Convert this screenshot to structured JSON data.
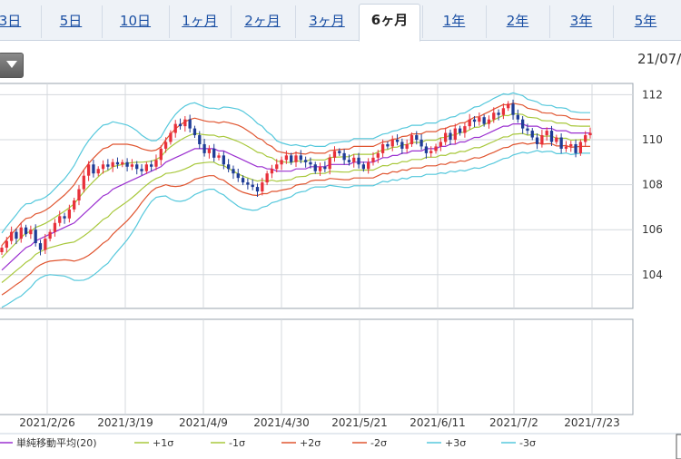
{
  "tabs": [
    {
      "label": "3日",
      "active": false
    },
    {
      "label": "5日",
      "active": false
    },
    {
      "label": "10日",
      "active": false
    },
    {
      "label": "1ヶ月",
      "active": false
    },
    {
      "label": "2ヶ月",
      "active": false
    },
    {
      "label": "3ヶ月",
      "active": false
    },
    {
      "label": "6ヶ月",
      "active": true
    },
    {
      "label": "1年",
      "active": false
    },
    {
      "label": "2年",
      "active": false
    },
    {
      "label": "3年",
      "active": false
    },
    {
      "label": "5年",
      "active": false
    }
  ],
  "date_label": "21/07/",
  "colors": {
    "sma": "#9b30d0",
    "sigma1": "#a8c83c",
    "sigma2": "#e05530",
    "sigma3": "#55c8dc",
    "up": "#e8303a",
    "down": "#1e3c96"
  },
  "chart_data": {
    "type": "candlestick",
    "title": "",
    "ylim": [
      102.5,
      112.5
    ],
    "y_ticks": [
      104,
      106,
      108,
      110,
      112
    ],
    "x_ticks": [
      "2021/2/26",
      "2021/3/19",
      "2021/4/9",
      "2021/4/30",
      "2021/5/21",
      "2021/6/11",
      "2021/7/2",
      "2021/7/23"
    ],
    "legend": [
      {
        "label": "単純移動平均(20)",
        "color_key": "sma"
      },
      {
        "label": "+1σ",
        "color_key": "sigma1"
      },
      {
        "label": "-1σ",
        "color_key": "sigma1"
      },
      {
        "label": "+2σ",
        "color_key": "sigma2"
      },
      {
        "label": "-2σ",
        "color_key": "sigma2"
      },
      {
        "label": "+3σ",
        "color_key": "sigma3"
      },
      {
        "label": "-3σ",
        "color_key": "sigma3"
      }
    ],
    "closes": [
      105.2,
      105.5,
      105.9,
      105.6,
      106.1,
      105.8,
      106.0,
      105.4,
      105.1,
      105.6,
      105.9,
      106.3,
      106.6,
      106.5,
      106.9,
      107.3,
      107.8,
      108.4,
      108.9,
      108.5,
      108.7,
      108.9,
      108.8,
      109.0,
      108.9,
      109.0,
      108.8,
      108.9,
      108.7,
      108.6,
      108.9,
      108.8,
      109.1,
      109.6,
      109.9,
      110.3,
      110.7,
      110.6,
      110.9,
      110.5,
      110.2,
      109.8,
      109.4,
      109.6,
      109.2,
      109.3,
      108.9,
      108.7,
      108.5,
      108.3,
      108.1,
      108.0,
      107.9,
      107.7,
      108.1,
      108.5,
      108.7,
      108.9,
      109.1,
      109.3,
      109.0,
      109.3,
      109.1,
      109.0,
      108.9,
      108.6,
      108.8,
      108.7,
      109.2,
      109.5,
      109.4,
      109.1,
      109.0,
      109.2,
      108.9,
      108.7,
      109.0,
      109.2,
      109.4,
      109.8,
      109.7,
      110.0,
      109.9,
      109.6,
      109.8,
      110.2,
      110.0,
      109.7,
      109.4,
      109.5,
      109.7,
      109.9,
      110.3,
      110.0,
      110.5,
      110.3,
      110.6,
      110.9,
      110.8,
      111.0,
      110.7,
      110.9,
      111.2,
      111.1,
      111.4,
      111.6,
      111.1,
      110.9,
      110.5,
      110.4,
      110.1,
      109.8,
      110.2,
      110.4,
      109.9,
      110.1,
      109.6,
      109.7,
      109.8,
      109.4,
      109.9,
      110.2,
      110.3
    ],
    "sma": [
      104.2,
      104.4,
      104.6,
      104.8,
      105.0,
      105.2,
      105.3,
      105.5,
      105.6,
      105.7,
      105.8,
      105.9,
      106.0,
      106.1,
      106.2,
      106.3,
      106.5,
      106.7,
      106.9,
      107.1,
      107.3,
      107.5,
      107.6,
      107.8,
      107.9,
      108.0,
      108.1,
      108.2,
      108.3,
      108.4,
      108.5,
      108.6,
      108.7,
      108.8,
      109.0,
      109.1,
      109.2,
      109.3,
      109.4,
      109.5,
      109.6,
      109.6,
      109.6,
      109.6,
      109.6,
      109.5,
      109.5,
      109.4,
      109.3,
      109.2,
      109.1,
      109.0,
      108.9,
      108.8,
      108.8,
      108.7,
      108.7,
      108.6,
      108.6,
      108.6,
      108.6,
      108.7,
      108.7,
      108.7,
      108.8,
      108.8,
      108.8,
      108.8,
      108.9,
      108.9,
      108.9,
      108.9,
      108.9,
      109.0,
      109.0,
      109.0,
      109.0,
      109.0,
      109.1,
      109.2,
      109.2,
      109.3,
      109.3,
      109.4,
      109.4,
      109.5,
      109.5,
      109.5,
      109.6,
      109.6,
      109.6,
      109.7,
      109.7,
      109.8,
      109.8,
      109.9,
      109.9,
      110.0,
      110.1,
      110.1,
      110.2,
      110.3,
      110.4,
      110.5,
      110.6,
      110.6,
      110.7,
      110.7,
      110.7,
      110.6,
      110.6,
      110.6,
      110.5,
      110.5,
      110.5,
      110.4,
      110.4,
      110.4,
      110.3,
      110.3,
      110.3,
      110.3,
      110.3
    ],
    "sigma": [
      0.55,
      0.58,
      0.6,
      0.62,
      0.65,
      0.65,
      0.62,
      0.6,
      0.58,
      0.58,
      0.6,
      0.64,
      0.68,
      0.72,
      0.78,
      0.85,
      0.92,
      0.98,
      1.02,
      1.04,
      1.05,
      1.05,
      1.03,
      1.0,
      0.95,
      0.9,
      0.85,
      0.78,
      0.7,
      0.6,
      0.52,
      0.45,
      0.42,
      0.44,
      0.5,
      0.58,
      0.64,
      0.68,
      0.7,
      0.7,
      0.68,
      0.65,
      0.62,
      0.6,
      0.6,
      0.62,
      0.65,
      0.68,
      0.7,
      0.72,
      0.72,
      0.7,
      0.68,
      0.64,
      0.6,
      0.55,
      0.5,
      0.45,
      0.42,
      0.4,
      0.38,
      0.36,
      0.34,
      0.33,
      0.32,
      0.3,
      0.3,
      0.3,
      0.31,
      0.32,
      0.33,
      0.34,
      0.34,
      0.35,
      0.35,
      0.35,
      0.35,
      0.35,
      0.35,
      0.35,
      0.36,
      0.36,
      0.37,
      0.37,
      0.38,
      0.38,
      0.38,
      0.38,
      0.38,
      0.38,
      0.38,
      0.39,
      0.4,
      0.4,
      0.41,
      0.42,
      0.43,
      0.44,
      0.45,
      0.46,
      0.47,
      0.47,
      0.48,
      0.48,
      0.48,
      0.47,
      0.46,
      0.44,
      0.42,
      0.4,
      0.38,
      0.36,
      0.35,
      0.34,
      0.34,
      0.34,
      0.34,
      0.33,
      0.32,
      0.31,
      0.3,
      0.3,
      0.3
    ]
  }
}
